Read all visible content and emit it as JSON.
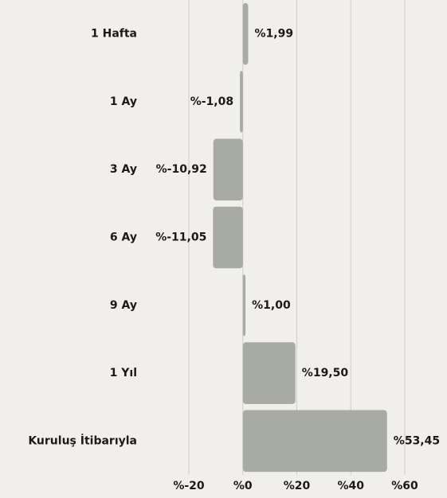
{
  "chart_data": {
    "type": "bar",
    "orientation": "horizontal",
    "categories": [
      "1 Hafta",
      "1 Ay",
      "3 Ay",
      "6 Ay",
      "9 Ay",
      "1 Yıl",
      "Kuruluş İtibarıyla"
    ],
    "values": [
      1.99,
      -1.08,
      -10.92,
      -11.05,
      1.0,
      19.5,
      53.45
    ],
    "value_labels": [
      "%1,99",
      "%-1,08",
      "%-10,92",
      "%-11,05",
      "%1,00",
      "%19,50",
      "%53,45"
    ],
    "color": "#a8aba3",
    "xlim": [
      -20,
      60
    ],
    "xticks": [
      {
        "value": -20,
        "label": "%-20"
      },
      {
        "value": 0,
        "label": "%0"
      },
      {
        "value": 20,
        "label": "%20"
      },
      {
        "value": 40,
        "label": "%40"
      },
      {
        "value": 60,
        "label": "%60"
      }
    ],
    "grid": true
  }
}
